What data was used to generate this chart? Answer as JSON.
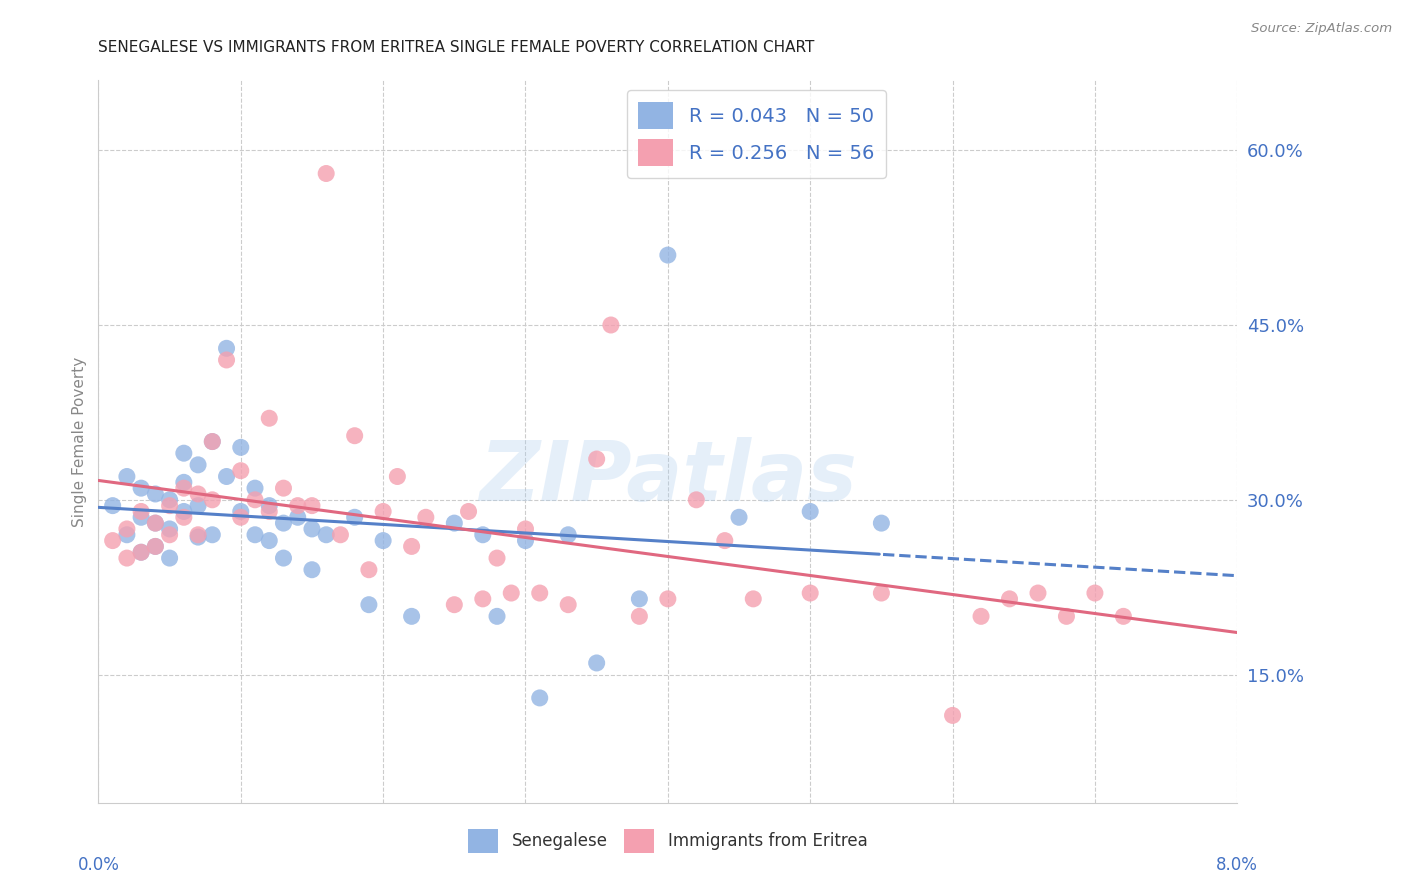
{
  "title": "SENEGALESE VS IMMIGRANTS FROM ERITREA SINGLE FEMALE POVERTY CORRELATION CHART",
  "source": "Source: ZipAtlas.com",
  "ylabel": "Single Female Poverty",
  "ytick_values": [
    0.15,
    0.3,
    0.45,
    0.6
  ],
  "xlim": [
    0.0,
    0.08
  ],
  "ylim": [
    0.04,
    0.66
  ],
  "legend_label1": "R = 0.043   N = 50",
  "legend_label2": "R = 0.256   N = 56",
  "legend_label_bottom1": "Senegalese",
  "legend_label_bottom2": "Immigrants from Eritrea",
  "color_blue": "#92b4e3",
  "color_pink": "#f4a0b0",
  "line_color_blue": "#5580c8",
  "line_color_pink": "#e06880",
  "watermark": "ZIPatlas",
  "title_color": "#222222",
  "source_color": "#888888",
  "label_color": "#4472c4",
  "ylabel_color": "#888888",
  "senegalese_x": [
    0.001,
    0.002,
    0.002,
    0.003,
    0.003,
    0.003,
    0.004,
    0.004,
    0.004,
    0.005,
    0.005,
    0.005,
    0.006,
    0.006,
    0.006,
    0.007,
    0.007,
    0.007,
    0.008,
    0.008,
    0.009,
    0.009,
    0.01,
    0.01,
    0.011,
    0.011,
    0.012,
    0.012,
    0.013,
    0.013,
    0.014,
    0.015,
    0.015,
    0.016,
    0.018,
    0.019,
    0.02,
    0.022,
    0.025,
    0.027,
    0.028,
    0.03,
    0.031,
    0.033,
    0.035,
    0.038,
    0.04,
    0.045,
    0.05,
    0.055
  ],
  "senegalese_y": [
    0.295,
    0.32,
    0.27,
    0.31,
    0.285,
    0.255,
    0.305,
    0.28,
    0.26,
    0.3,
    0.275,
    0.25,
    0.34,
    0.315,
    0.29,
    0.33,
    0.295,
    0.268,
    0.35,
    0.27,
    0.43,
    0.32,
    0.345,
    0.29,
    0.31,
    0.27,
    0.295,
    0.265,
    0.28,
    0.25,
    0.285,
    0.275,
    0.24,
    0.27,
    0.285,
    0.21,
    0.265,
    0.2,
    0.28,
    0.27,
    0.2,
    0.265,
    0.13,
    0.27,
    0.16,
    0.215,
    0.51,
    0.285,
    0.29,
    0.28
  ],
  "eritrea_x": [
    0.001,
    0.002,
    0.002,
    0.003,
    0.003,
    0.004,
    0.004,
    0.005,
    0.005,
    0.006,
    0.006,
    0.007,
    0.007,
    0.008,
    0.008,
    0.009,
    0.01,
    0.01,
    0.011,
    0.012,
    0.012,
    0.013,
    0.014,
    0.015,
    0.016,
    0.017,
    0.018,
    0.019,
    0.02,
    0.021,
    0.022,
    0.023,
    0.025,
    0.026,
    0.027,
    0.028,
    0.029,
    0.03,
    0.031,
    0.033,
    0.035,
    0.036,
    0.038,
    0.04,
    0.042,
    0.044,
    0.046,
    0.05,
    0.055,
    0.06,
    0.062,
    0.064,
    0.066,
    0.068,
    0.07,
    0.072
  ],
  "eritrea_y": [
    0.265,
    0.275,
    0.25,
    0.29,
    0.255,
    0.28,
    0.26,
    0.295,
    0.27,
    0.31,
    0.285,
    0.305,
    0.27,
    0.35,
    0.3,
    0.42,
    0.325,
    0.285,
    0.3,
    0.37,
    0.29,
    0.31,
    0.295,
    0.295,
    0.58,
    0.27,
    0.355,
    0.24,
    0.29,
    0.32,
    0.26,
    0.285,
    0.21,
    0.29,
    0.215,
    0.25,
    0.22,
    0.275,
    0.22,
    0.21,
    0.335,
    0.45,
    0.2,
    0.215,
    0.3,
    0.265,
    0.215,
    0.22,
    0.22,
    0.115,
    0.2,
    0.215,
    0.22,
    0.2,
    0.22,
    0.2
  ]
}
